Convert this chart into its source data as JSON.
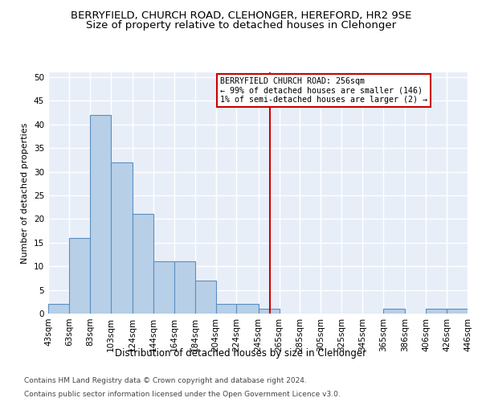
{
  "title": "BERRYFIELD, CHURCH ROAD, CLEHONGER, HEREFORD, HR2 9SE",
  "subtitle": "Size of property relative to detached houses in Clehonger",
  "xlabel_bottom": "Distribution of detached houses by size in Clehonger",
  "ylabel": "Number of detached properties",
  "footer1": "Contains HM Land Registry data © Crown copyright and database right 2024.",
  "footer2": "Contains public sector information licensed under the Open Government Licence v3.0.",
  "bar_lefts": [
    43,
    63,
    83,
    103,
    124,
    144,
    164,
    184,
    204,
    224,
    245,
    265,
    285,
    305,
    325,
    345,
    365,
    386,
    406,
    426
  ],
  "bar_widths": [
    20,
    20,
    20,
    21,
    20,
    20,
    20,
    20,
    20,
    21,
    20,
    20,
    20,
    20,
    20,
    20,
    21,
    20,
    20,
    20
  ],
  "bar_values": [
    2,
    16,
    42,
    32,
    21,
    11,
    11,
    7,
    2,
    2,
    1,
    0,
    0,
    0,
    0,
    0,
    1,
    0,
    1,
    1
  ],
  "bar_color": "#b8cfe8",
  "bar_edge_color": "#5a8fc0",
  "reference_line_x": 256,
  "annotation_title": "BERRYFIELD CHURCH ROAD: 256sqm",
  "annotation_line1": "← 99% of detached houses are smaller (146)",
  "annotation_line2": "1% of semi-detached houses are larger (2) →",
  "annotation_box_color": "#cc0000",
  "ref_line_color": "#cc0000",
  "ylim": [
    0,
    51
  ],
  "yticks": [
    0,
    5,
    10,
    15,
    20,
    25,
    30,
    35,
    40,
    45,
    50
  ],
  "tick_labels": [
    "43sqm",
    "63sqm",
    "83sqm",
    "103sqm",
    "124sqm",
    "144sqm",
    "164sqm",
    "184sqm",
    "204sqm",
    "224sqm",
    "245sqm",
    "265sqm",
    "285sqm",
    "305sqm",
    "325sqm",
    "345sqm",
    "365sqm",
    "386sqm",
    "406sqm",
    "426sqm",
    "446sqm"
  ],
  "tick_positions": [
    43,
    63,
    83,
    103,
    124,
    144,
    164,
    184,
    204,
    224,
    245,
    265,
    285,
    305,
    325,
    345,
    365,
    386,
    406,
    426,
    446
  ],
  "xlim": [
    43,
    446
  ],
  "bg_color": "#e8eef8",
  "grid_color": "#ffffff",
  "title_fontsize": 9.5,
  "subtitle_fontsize": 9.5,
  "ylabel_fontsize": 8,
  "xlabel_fontsize": 8.5,
  "tick_label_fontsize": 7.5,
  "footer_fontsize": 6.5
}
